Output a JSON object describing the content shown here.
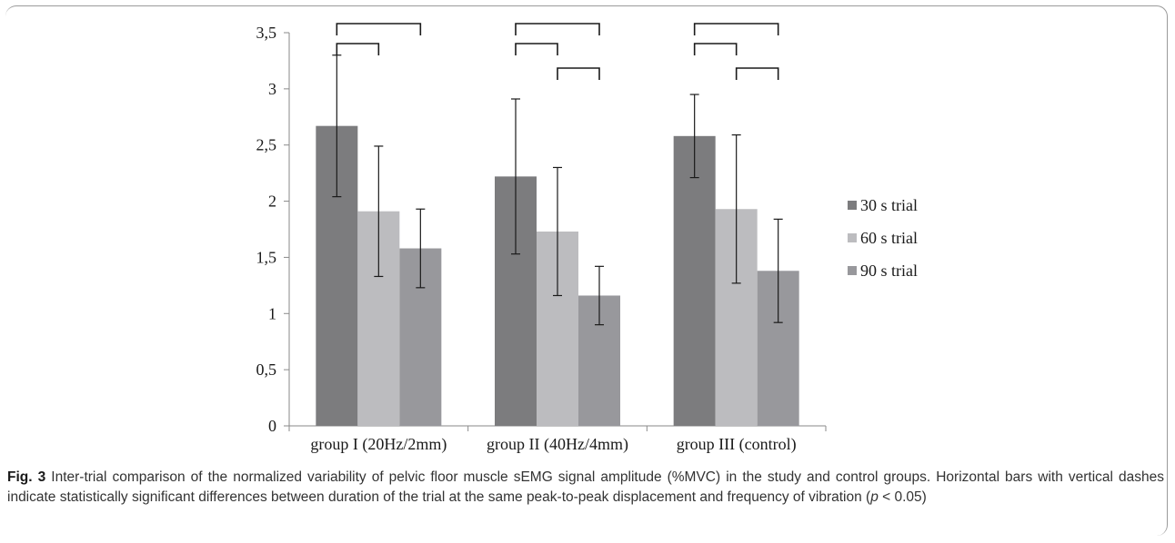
{
  "chart_data": {
    "type": "bar",
    "categories": [
      "group I (20Hz/2mm)",
      "group II (40Hz/4mm)",
      "group III (control)"
    ],
    "series": [
      {
        "name": "30 s trial",
        "values": [
          2.67,
          2.22,
          2.58
        ],
        "errors": [
          0.63,
          0.69,
          0.37
        ],
        "color": "#7c7c7e"
      },
      {
        "name": "60 s trial",
        "values": [
          1.91,
          1.73,
          1.93
        ],
        "errors": [
          0.58,
          0.57,
          0.66
        ],
        "color": "#bcbcbf"
      },
      {
        "name": "90 s trial",
        "values": [
          1.58,
          1.16,
          1.38
        ],
        "errors": [
          0.35,
          0.26,
          0.46
        ],
        "color": "#98989c"
      }
    ],
    "yticks": [
      "0",
      "0,5",
      "1",
      "1,5",
      "2",
      "2,5",
      "3",
      "3,5"
    ],
    "ylim": [
      0,
      3.5
    ],
    "legend_position": "right",
    "significance_brackets": [
      {
        "group": 0,
        "from": 0,
        "to": 2,
        "level": 1
      },
      {
        "group": 0,
        "from": 0,
        "to": 1,
        "level": 0
      },
      {
        "group": 1,
        "from": 0,
        "to": 2,
        "level": 1
      },
      {
        "group": 1,
        "from": 0,
        "to": 1,
        "level": 0
      },
      {
        "group": 1,
        "from": 1,
        "to": 2,
        "level": -1
      },
      {
        "group": 2,
        "from": 0,
        "to": 2,
        "level": 1
      },
      {
        "group": 2,
        "from": 0,
        "to": 1,
        "level": 0
      },
      {
        "group": 2,
        "from": 1,
        "to": 2,
        "level": -1
      }
    ]
  },
  "caption": {
    "label": "Fig. 3",
    "text_before": " Inter-trial comparison of the normalized variability of pelvic floor muscle sEMG signal amplitude (%MVC) in the study and control groups. Horizontal bars with vertical dashes indicate statistically significant differences between duration of the trial at the same peak-to-peak displacement and frequency of vibration (",
    "p_symbol": "p",
    "text_after": " < 0.05)"
  }
}
